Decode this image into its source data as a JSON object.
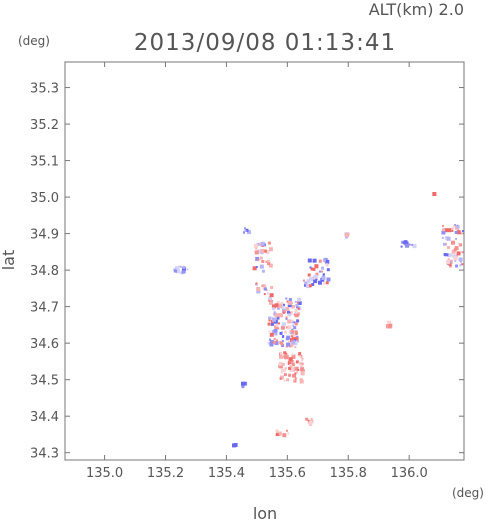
{
  "chart_data": {
    "type": "scatter",
    "title": "2013/09/08 01:13:41",
    "altitude_label": "ALT(km) 2.0",
    "xlabel": "lon",
    "ylabel": "lat",
    "x_unit": "(deg)",
    "y_unit": "(deg)",
    "xlim": [
      134.87,
      136.18
    ],
    "ylim": [
      34.28,
      35.37
    ],
    "x_ticks": [
      135.0,
      135.2,
      135.4,
      135.6,
      135.8,
      136.0
    ],
    "x_tick_labels": [
      "135.0",
      "135.2",
      "135.4",
      "135.6",
      "135.8",
      "136.0"
    ],
    "y_ticks": [
      34.3,
      34.4,
      34.5,
      34.6,
      34.7,
      34.8,
      34.9,
      35.0,
      35.1,
      35.2,
      35.3
    ],
    "y_tick_labels": [
      "34.3",
      "34.4",
      "34.5",
      "34.6",
      "34.7",
      "34.8",
      "34.9",
      "35.0",
      "35.1",
      "35.2",
      "35.3"
    ],
    "grid": false,
    "colors": {
      "positive": "#f06a6a",
      "negative": "#6a6af0",
      "frame": "#777777"
    },
    "clusters": [
      {
        "lon": 135.245,
        "lat": 34.805,
        "spread_lon": 0.025,
        "spread_lat": 0.01,
        "count": 14,
        "sign": "negative"
      },
      {
        "lon": 135.46,
        "lat": 34.91,
        "spread_lon": 0.012,
        "spread_lat": 0.008,
        "count": 6,
        "sign": "negative"
      },
      {
        "lon": 135.51,
        "lat": 34.84,
        "spread_lon": 0.03,
        "spread_lat": 0.04,
        "count": 30,
        "sign": "mixed"
      },
      {
        "lon": 135.585,
        "lat": 34.66,
        "spread_lon": 0.05,
        "spread_lat": 0.07,
        "count": 140,
        "sign": "mixed"
      },
      {
        "lon": 135.61,
        "lat": 34.54,
        "spread_lon": 0.04,
        "spread_lat": 0.04,
        "count": 70,
        "sign": "positive"
      },
      {
        "lon": 135.69,
        "lat": 34.8,
        "spread_lon": 0.04,
        "spread_lat": 0.04,
        "count": 45,
        "sign": "mixed"
      },
      {
        "lon": 135.79,
        "lat": 34.9,
        "spread_lon": 0.01,
        "spread_lat": 0.006,
        "count": 5,
        "sign": "mixed"
      },
      {
        "lon": 135.93,
        "lat": 34.655,
        "spread_lon": 0.01,
        "spread_lat": 0.008,
        "count": 6,
        "sign": "positive"
      },
      {
        "lon": 135.99,
        "lat": 34.875,
        "spread_lon": 0.025,
        "spread_lat": 0.01,
        "count": 14,
        "sign": "negative"
      },
      {
        "lon": 136.08,
        "lat": 35.01,
        "spread_lon": 0.005,
        "spread_lat": 0.005,
        "count": 2,
        "sign": "mixed"
      },
      {
        "lon": 136.14,
        "lat": 34.87,
        "spread_lon": 0.035,
        "spread_lat": 0.06,
        "count": 60,
        "sign": "mixed"
      },
      {
        "lon": 135.45,
        "lat": 34.49,
        "spread_lon": 0.006,
        "spread_lat": 0.006,
        "count": 4,
        "sign": "negative"
      },
      {
        "lon": 135.67,
        "lat": 34.39,
        "spread_lon": 0.012,
        "spread_lat": 0.008,
        "count": 8,
        "sign": "positive"
      },
      {
        "lon": 135.58,
        "lat": 34.36,
        "spread_lon": 0.02,
        "spread_lat": 0.01,
        "count": 8,
        "sign": "positive"
      },
      {
        "lon": 135.42,
        "lat": 34.325,
        "spread_lon": 0.005,
        "spread_lat": 0.004,
        "count": 2,
        "sign": "negative"
      },
      {
        "lon": 135.52,
        "lat": 34.75,
        "spread_lon": 0.03,
        "spread_lat": 0.02,
        "count": 14,
        "sign": "mixed"
      }
    ]
  }
}
